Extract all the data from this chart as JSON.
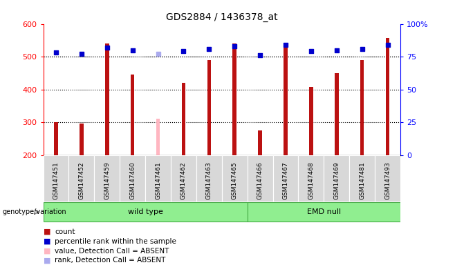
{
  "title": "GDS2884 / 1436378_at",
  "samples": [
    "GSM147451",
    "GSM147452",
    "GSM147459",
    "GSM147460",
    "GSM147461",
    "GSM147462",
    "GSM147463",
    "GSM147465",
    "GSM147466",
    "GSM147467",
    "GSM147468",
    "GSM147469",
    "GSM147481",
    "GSM147493"
  ],
  "counts": [
    300,
    295,
    540,
    445,
    310,
    420,
    490,
    540,
    275,
    540,
    408,
    450,
    490,
    557
  ],
  "percentile_ranks": [
    78,
    77,
    82,
    80,
    77,
    79,
    81,
    83,
    76,
    84,
    79,
    80,
    81,
    84
  ],
  "absent": [
    false,
    false,
    false,
    false,
    true,
    false,
    false,
    false,
    false,
    false,
    false,
    false,
    false,
    false
  ],
  "group_labels": [
    "wild type",
    "EMD null"
  ],
  "group_ranges": [
    [
      0,
      7
    ],
    [
      8,
      13
    ]
  ],
  "ylim_left": [
    200,
    600
  ],
  "ylim_right": [
    0,
    100
  ],
  "yticks_left": [
    200,
    300,
    400,
    500,
    600
  ],
  "yticks_right": [
    0,
    25,
    50,
    75,
    100
  ],
  "bar_color_normal": "#bb1111",
  "bar_color_absent": "#ffb6c1",
  "dot_color_normal": "#0000cc",
  "dot_color_absent": "#aaaaee",
  "plot_bg_color": "#ffffff",
  "bar_width": 0.15,
  "dot_size": 22
}
